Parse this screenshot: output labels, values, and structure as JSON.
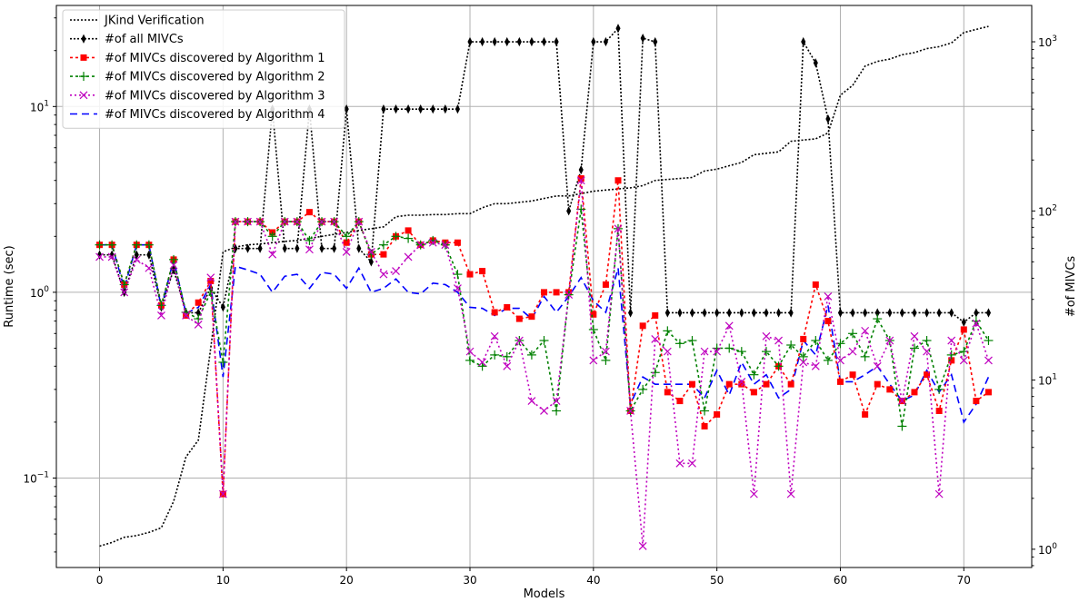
{
  "chart_data": {
    "type": "line",
    "xlabel": "Models",
    "ylabel_left": "Runtime (sec)",
    "ylabel_right": "#of MIVCs",
    "xlim": [
      -3.5,
      75.5
    ],
    "ylim_left": [
      0.033,
      35
    ],
    "ylim_right": [
      0.78,
      1640
    ],
    "scale_left": "log",
    "scale_right": "log",
    "grid": true,
    "legend_position": "top-left",
    "x_ticks": [
      0,
      10,
      20,
      30,
      40,
      50,
      60,
      70
    ],
    "y_ticks_left": [
      {
        "value": 0.1,
        "base": "10",
        "exp": "−1"
      },
      {
        "value": 1,
        "base": "10",
        "exp": "0"
      },
      {
        "value": 10,
        "base": "10",
        "exp": "1"
      }
    ],
    "y_ticks_right": [
      {
        "value": 1,
        "base": "10",
        "exp": "0"
      },
      {
        "value": 10,
        "base": "10",
        "exp": "1"
      },
      {
        "value": 100,
        "base": "10",
        "exp": "2"
      },
      {
        "value": 1000,
        "base": "10",
        "exp": "3"
      }
    ],
    "series": [
      {
        "name": "JKind Verification",
        "axis": "left",
        "color": "#000000",
        "dash": "2,2",
        "marker": "none",
        "values": [
          0.043,
          0.045,
          0.048,
          0.049,
          0.051,
          0.054,
          0.075,
          0.13,
          0.16,
          0.5,
          1.65,
          1.75,
          1.8,
          1.82,
          1.85,
          1.88,
          1.9,
          1.95,
          2.0,
          2.05,
          2.1,
          2.15,
          2.2,
          2.25,
          2.55,
          2.6,
          2.6,
          2.62,
          2.62,
          2.65,
          2.65,
          2.85,
          3.0,
          3.0,
          3.05,
          3.1,
          3.2,
          3.3,
          3.3,
          3.4,
          3.5,
          3.55,
          3.6,
          3.65,
          3.75,
          4.0,
          4.05,
          4.1,
          4.15,
          4.5,
          4.6,
          4.8,
          5.0,
          5.5,
          5.6,
          5.7,
          6.5,
          6.6,
          6.7,
          7.2,
          11.5,
          13,
          16.5,
          17.5,
          18,
          19,
          19.5,
          20.5,
          21,
          22,
          25,
          26,
          27
        ]
      },
      {
        "name": "#of all MIVCs",
        "axis": "right",
        "color": "#000000",
        "dash": "2,2",
        "marker": "diamond",
        "values": [
          55,
          55,
          33,
          55,
          55,
          27,
          45,
          25,
          25,
          35,
          27,
          60,
          60,
          60,
          400,
          60,
          60,
          400,
          60,
          60,
          400,
          60,
          50,
          400,
          400,
          400,
          400,
          400,
          400,
          400,
          1000,
          1000,
          1000,
          1000,
          1000,
          1000,
          1000,
          1000,
          100,
          175,
          1000,
          1000,
          1200,
          25,
          1050,
          1000,
          25,
          25,
          25,
          25,
          25,
          25,
          25,
          25,
          25,
          25,
          25,
          1000,
          750,
          350,
          25,
          25,
          25,
          25,
          25,
          25,
          25,
          25,
          25,
          25,
          22,
          25,
          25
        ]
      },
      {
        "name": "#of MIVCs discovered by Algorithm 1",
        "axis": "left",
        "color": "#ff0000",
        "dash": "3,3",
        "marker": "square",
        "values": [
          1.8,
          1.8,
          1.1,
          1.8,
          1.8,
          0.85,
          1.5,
          0.75,
          0.88,
          1.15,
          0.082,
          2.4,
          2.4,
          2.4,
          2.1,
          2.4,
          2.4,
          2.7,
          2.4,
          2.4,
          1.85,
          2.4,
          1.6,
          1.6,
          2.0,
          2.15,
          1.8,
          1.9,
          1.85,
          1.85,
          1.25,
          1.3,
          0.78,
          0.83,
          0.72,
          0.74,
          1.0,
          1.0,
          1.0,
          4.1,
          0.76,
          1.1,
          4.0,
          0.23,
          0.66,
          0.75,
          0.29,
          0.26,
          0.32,
          0.19,
          0.22,
          0.32,
          0.32,
          0.29,
          0.32,
          0.4,
          0.32,
          0.56,
          1.1,
          0.7,
          0.33,
          0.36,
          0.22,
          0.32,
          0.3,
          0.26,
          0.29,
          0.36,
          0.23,
          0.43,
          0.63,
          0.26,
          0.29
        ]
      },
      {
        "name": "#of MIVCs discovered by Algorithm 2",
        "axis": "left",
        "color": "#008000",
        "dash": "3,3",
        "marker": "plus",
        "values": [
          1.8,
          1.8,
          1.1,
          1.8,
          1.8,
          0.85,
          1.5,
          0.78,
          0.72,
          1.0,
          0.42,
          2.4,
          2.4,
          2.4,
          2.0,
          2.4,
          2.4,
          1.9,
          2.4,
          2.4,
          2.0,
          2.4,
          1.6,
          1.8,
          2.0,
          1.95,
          1.8,
          1.9,
          1.8,
          1.25,
          0.43,
          0.4,
          0.46,
          0.45,
          0.55,
          0.46,
          0.55,
          0.23,
          0.97,
          2.8,
          0.63,
          0.43,
          2.2,
          0.23,
          0.3,
          0.37,
          0.62,
          0.53,
          0.55,
          0.23,
          0.5,
          0.5,
          0.48,
          0.36,
          0.48,
          0.4,
          0.52,
          0.45,
          0.55,
          0.43,
          0.53,
          0.6,
          0.45,
          0.72,
          0.55,
          0.19,
          0.5,
          0.55,
          0.3,
          0.46,
          0.48,
          0.7,
          0.55
        ]
      },
      {
        "name": "#of MIVCs discovered by Algorithm 3",
        "axis": "left",
        "color": "#bf00bf",
        "dash": "2,3",
        "marker": "x",
        "values": [
          1.55,
          1.55,
          1.0,
          1.5,
          1.35,
          0.75,
          1.4,
          0.75,
          0.67,
          1.2,
          0.082,
          2.4,
          2.4,
          2.4,
          1.6,
          2.4,
          2.4,
          1.7,
          2.4,
          2.4,
          1.65,
          2.4,
          1.65,
          1.25,
          1.3,
          1.55,
          1.8,
          1.85,
          1.8,
          1.05,
          0.48,
          0.42,
          0.58,
          0.4,
          0.55,
          0.26,
          0.23,
          0.26,
          0.97,
          4.0,
          0.43,
          0.48,
          2.2,
          0.23,
          0.043,
          0.56,
          0.48,
          0.12,
          0.12,
          0.48,
          0.48,
          0.66,
          0.33,
          0.082,
          0.58,
          0.55,
          0.082,
          0.42,
          0.4,
          0.95,
          0.43,
          0.48,
          0.62,
          0.4,
          0.55,
          0.26,
          0.58,
          0.48,
          0.082,
          0.55,
          0.43,
          0.68,
          0.43
        ]
      },
      {
        "name": "#of MIVCs discovered by Algorithm 4",
        "axis": "left",
        "color": "#0000ff",
        "dash": "8,5",
        "marker": "none",
        "values": [
          1.8,
          1.8,
          1.05,
          1.8,
          1.8,
          0.83,
          1.5,
          0.77,
          0.83,
          1.1,
          0.35,
          1.38,
          1.32,
          1.25,
          1.0,
          1.22,
          1.25,
          1.05,
          1.28,
          1.25,
          1.05,
          1.35,
          1.0,
          1.05,
          1.18,
          1.0,
          0.98,
          1.12,
          1.1,
          1.0,
          0.83,
          0.82,
          0.75,
          0.82,
          0.82,
          0.72,
          0.95,
          0.78,
          0.95,
          1.2,
          0.9,
          0.78,
          1.35,
          0.25,
          0.35,
          0.32,
          0.32,
          0.32,
          0.32,
          0.27,
          0.38,
          0.28,
          0.42,
          0.32,
          0.36,
          0.27,
          0.3,
          0.55,
          0.46,
          0.85,
          0.33,
          0.33,
          0.36,
          0.4,
          0.32,
          0.26,
          0.28,
          0.38,
          0.29,
          0.36,
          0.2,
          0.25,
          0.35
        ]
      }
    ]
  }
}
